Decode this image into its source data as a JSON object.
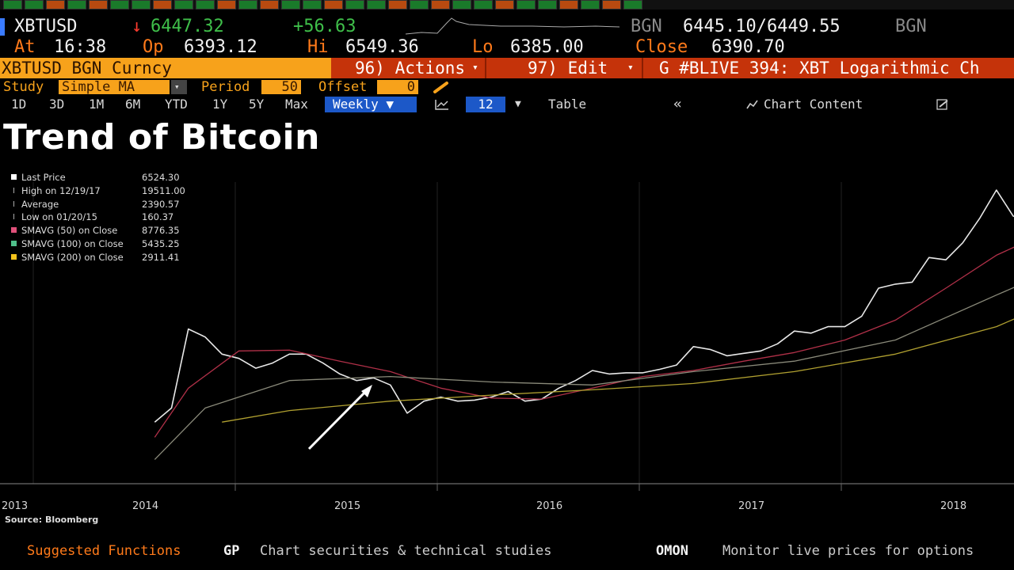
{
  "quote": {
    "ticker": "XBTUSD",
    "direction_arrow": "↓",
    "last": "6447.32",
    "change": "+56.63",
    "source_left": "BGN",
    "bid_ask": "6445.10/6449.55",
    "source_right": "BGN",
    "at_label": "At",
    "time": "16:38",
    "op_label": "Op",
    "open": "6393.12",
    "hi_label": "Hi",
    "high": "6549.36",
    "lo_label": "Lo",
    "low": "6385.00",
    "close_label": "Close",
    "close": "6390.70"
  },
  "command_bar": {
    "security": "XBTUSD BGN Curncy",
    "actions": "96) Actions",
    "edit": "97) Edit",
    "chart_name": "G #BLIVE 394: XBT Logarithmic Ch"
  },
  "study": {
    "study_label": "Study",
    "study_value": "Simple MA",
    "period_label": "Period",
    "period_value": "50",
    "offset_label": "Offset",
    "offset_value": "0"
  },
  "toolbar": {
    "ranges": [
      "1D",
      "3D",
      "1M",
      "6M",
      "YTD",
      "1Y",
      "5Y",
      "Max"
    ],
    "frequency": "Weekly ▼",
    "page": "12",
    "table": "Table",
    "collapse": "«",
    "chart_content": "Chart Content"
  },
  "chart_title": "Trend of Bitcoin",
  "legend": [
    {
      "label": "Last Price",
      "value": "6524.30",
      "color": "#ffffff"
    },
    {
      "label": "High on 12/19/17",
      "value": "19511.00",
      "color": ""
    },
    {
      "label": "Average",
      "value": "2390.57",
      "color": ""
    },
    {
      "label": "Low on 01/20/15",
      "value": "160.37",
      "color": ""
    },
    {
      "label": "SMAVG (50)  on Close",
      "value": "8776.35",
      "color": "#e0507a"
    },
    {
      "label": "SMAVG (100)  on Close",
      "value": "5435.25",
      "color": "#4fbf8a"
    },
    {
      "label": "SMAVG (200)  on Close",
      "value": "2911.41",
      "color": "#f2c21b"
    }
  ],
  "chart_data": {
    "type": "line",
    "scale": "log",
    "x_ticks": [
      "2013",
      "2014",
      "2015",
      "2016",
      "2017",
      "2018"
    ],
    "series": [
      {
        "name": "Last Price",
        "color": "#e8e8e8",
        "x": [
          "2013-10",
          "2013-11",
          "2013-12",
          "2014-01",
          "2014-02",
          "2014-03",
          "2014-04",
          "2014-05",
          "2014-06",
          "2014-07",
          "2014-08",
          "2014-09",
          "2014-10",
          "2014-11",
          "2014-12",
          "2015-01",
          "2015-02",
          "2015-03",
          "2015-04",
          "2015-05",
          "2015-06",
          "2015-07",
          "2015-08",
          "2015-09",
          "2015-10",
          "2015-11",
          "2015-12",
          "2016-01",
          "2016-02",
          "2016-03",
          "2016-04",
          "2016-05",
          "2016-06",
          "2016-07",
          "2016-08",
          "2016-09",
          "2016-10",
          "2016-11",
          "2016-12",
          "2017-01",
          "2017-02",
          "2017-03",
          "2017-04",
          "2017-05",
          "2017-06",
          "2017-07",
          "2017-08",
          "2017-09",
          "2017-10",
          "2017-11",
          "2017-12",
          "2018-01",
          "2018-02",
          "2018-03",
          "2018-04",
          "2018-05",
          "2018-06",
          "2018-07",
          "2018-08",
          "2018-09",
          "2018-10"
        ],
        "y": [
          150,
          200,
          1000,
          850,
          600,
          550,
          450,
          500,
          600,
          600,
          500,
          400,
          350,
          370,
          320,
          180,
          230,
          250,
          230,
          235,
          250,
          280,
          230,
          240,
          300,
          350,
          430,
          400,
          410,
          410,
          440,
          480,
          700,
          660,
          580,
          610,
          640,
          740,
          960,
          920,
          1050,
          1050,
          1300,
          2300,
          2500,
          2600,
          4300,
          4100,
          5800,
          9500,
          17000,
          10000,
          9000,
          7000,
          9000,
          7500,
          6400,
          7500,
          6400,
          6500,
          6300
        ]
      },
      {
        "name": "SMAVG (50)",
        "color": "#b03048",
        "x": [
          "2013-10",
          "2013-12",
          "2014-03",
          "2014-06",
          "2014-09",
          "2014-12",
          "2015-03",
          "2015-06",
          "2015-09",
          "2015-12",
          "2016-03",
          "2016-06",
          "2016-09",
          "2016-12",
          "2017-03",
          "2017-06",
          "2017-09",
          "2017-12",
          "2018-03",
          "2018-06",
          "2018-10"
        ],
        "y": [
          110,
          300,
          640,
          650,
          520,
          420,
          300,
          245,
          240,
          300,
          380,
          430,
          520,
          620,
          800,
          1200,
          2300,
          4500,
          7200,
          8300,
          8776
        ]
      },
      {
        "name": "SMAVG (100)",
        "color": "#8a8a7a",
        "x": [
          "2013-10",
          "2014-01",
          "2014-06",
          "2014-12",
          "2015-06",
          "2015-12",
          "2016-06",
          "2016-12",
          "2017-06",
          "2017-12",
          "2018-05",
          "2018-10"
        ],
        "y": [
          70,
          200,
          350,
          380,
          340,
          320,
          420,
          520,
          800,
          2000,
          4200,
          5435
        ]
      },
      {
        "name": "SMAVG (200)",
        "color": "#b0a030",
        "x": [
          "2014-02",
          "2014-06",
          "2014-12",
          "2015-06",
          "2015-12",
          "2016-06",
          "2016-12",
          "2017-06",
          "2017-12",
          "2018-05",
          "2018-10"
        ],
        "y": [
          150,
          190,
          230,
          260,
          290,
          330,
          420,
          600,
          1050,
          2200,
          2911
        ]
      }
    ]
  },
  "source": "Source: Bloomberg",
  "bottom": {
    "suggested": "Suggested Functions",
    "gp_code": "GP",
    "gp_desc": "Chart securities & technical studies",
    "omon_code": "OMON",
    "omon_desc": "Monitor live prices for options"
  }
}
